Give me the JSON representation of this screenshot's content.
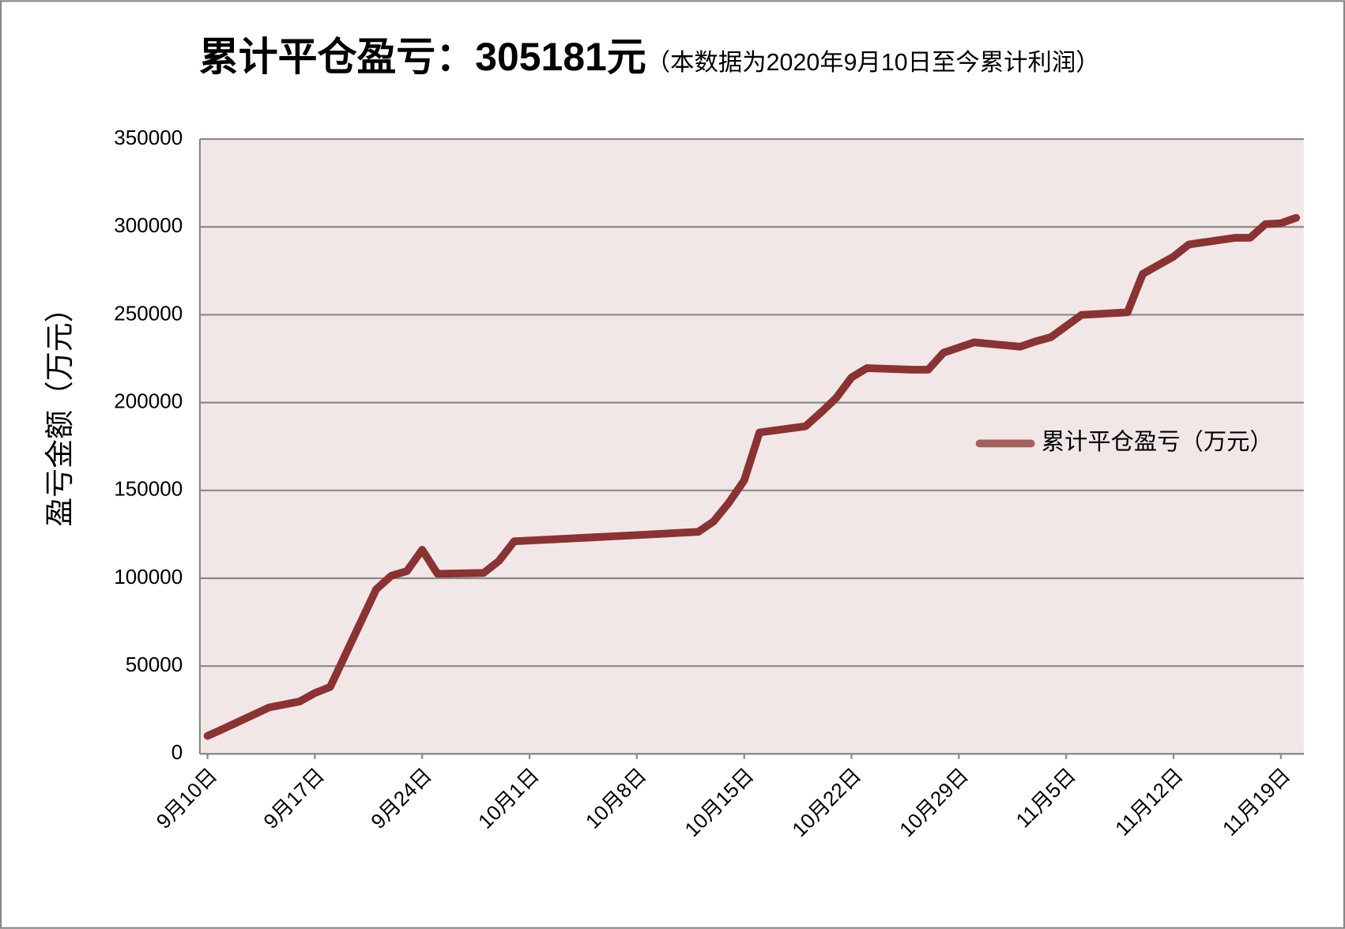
{
  "chart_data": {
    "type": "line",
    "title": "累计平仓盈亏：305181元",
    "subtitle": "（本数据为2020年9月10日至今累计利润）",
    "y_label": "盈亏金额（万元）",
    "xlim": [
      -0.5,
      71.5
    ],
    "xticks": [
      {
        "value": 0,
        "label": "9月10日"
      },
      {
        "value": 7,
        "label": "9月17日"
      },
      {
        "value": 14,
        "label": "9月24日"
      },
      {
        "value": 21,
        "label": "10月1日"
      },
      {
        "value": 28,
        "label": "10月8日"
      },
      {
        "value": 35,
        "label": "10月15日"
      },
      {
        "value": 42,
        "label": "10月22日"
      },
      {
        "value": 49,
        "label": "10月29日"
      },
      {
        "value": 56,
        "label": "11月5日"
      },
      {
        "value": 63,
        "label": "11月12日"
      },
      {
        "value": 70,
        "label": "11月19日"
      }
    ],
    "ylim": [
      0,
      350000
    ],
    "yticks": [
      0,
      50000,
      100000,
      150000,
      200000,
      250000,
      300000,
      350000
    ],
    "grid": true,
    "legend": "right",
    "x": [
      0,
      1,
      4,
      6,
      7,
      8,
      11,
      12,
      13,
      14,
      15,
      18,
      19,
      20,
      29,
      32,
      33,
      34,
      35,
      36,
      39,
      40,
      41,
      42,
      43,
      46,
      47,
      48,
      50,
      53,
      54,
      55,
      57,
      60,
      61,
      63,
      64,
      67,
      68,
      69,
      70,
      71
    ],
    "series": [
      {
        "name": "累计平仓盈亏（万元）",
        "color": "#8b3232",
        "values": [
          10250,
          14150,
          26400,
          29800,
          34650,
          38100,
          93700,
          101500,
          104000,
          116200,
          102500,
          103000,
          109800,
          121000,
          125000,
          126400,
          132300,
          143000,
          155700,
          183000,
          186500,
          194300,
          202600,
          214300,
          219600,
          218700,
          218700,
          228400,
          234300,
          231800,
          234800,
          237200,
          249900,
          251400,
          273300,
          283100,
          290000,
          293800,
          293800,
          301600,
          302100,
          305181
        ]
      }
    ]
  }
}
